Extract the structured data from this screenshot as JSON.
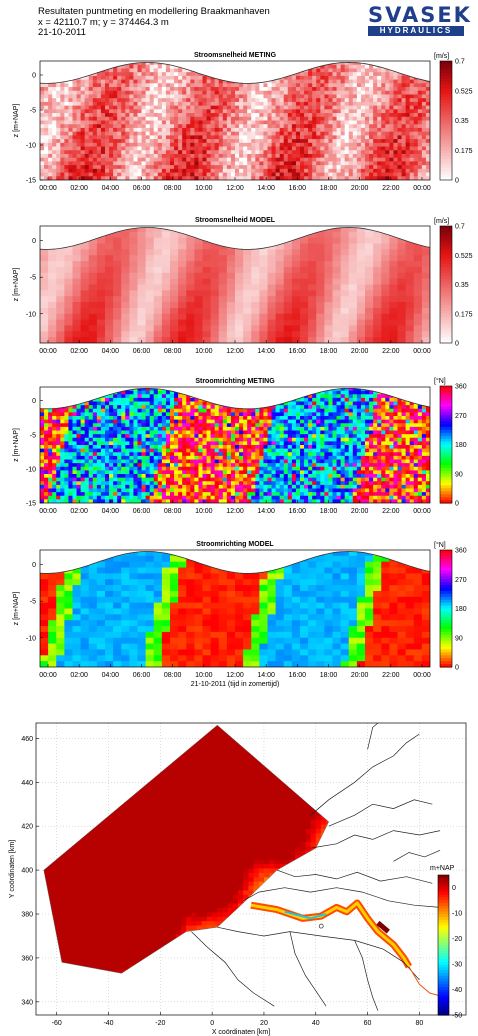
{
  "header": {
    "line1": "Resultaten puntmeting en modellering Braakmanhaven",
    "line2": "x = 42110.7 m;  y = 374464.3 m",
    "line3": "21-10-2011"
  },
  "logo": {
    "top": "SVASEK",
    "bottom": "HYDRAULICS",
    "color": "#1f3f8a"
  },
  "chart_data": [
    {
      "type": "heatmap",
      "title": "Stroomsnelheid METING",
      "ylabel": "z [m+NAP]",
      "xticks": [
        "00:00",
        "02:00",
        "04:00",
        "06:00",
        "08:00",
        "10:00",
        "12:00",
        "14:00",
        "16:00",
        "18:00",
        "20:00",
        "22:00",
        "00:00"
      ],
      "yticks": [
        0,
        -5,
        -10,
        -15
      ],
      "ylim": [
        -15,
        2
      ],
      "colorbar": {
        "unit": "[m/s]",
        "ticks": [
          "0.7",
          "0.525",
          "0.35",
          "0.175",
          "0"
        ],
        "range": [
          0,
          0.7
        ],
        "colormap": "white-red"
      }
    },
    {
      "type": "heatmap",
      "title": "Stroomsnelheid MODEL",
      "ylabel": "z [m+NAP]",
      "xticks": [
        "00:00",
        "02:00",
        "04:00",
        "06:00",
        "08:00",
        "10:00",
        "12:00",
        "14:00",
        "16:00",
        "18:00",
        "20:00",
        "22:00",
        "00:00"
      ],
      "yticks": [
        0,
        -5,
        -10
      ],
      "ylim": [
        -14,
        2
      ],
      "colorbar": {
        "unit": "[m/s]",
        "ticks": [
          "0.7",
          "0.525",
          "0.35",
          "0.175",
          "0"
        ],
        "range": [
          0,
          0.7
        ],
        "colormap": "white-red"
      }
    },
    {
      "type": "heatmap",
      "title": "Stroomrichting METING",
      "ylabel": "z [m+NAP]",
      "xticks": [
        "00:00",
        "02:00",
        "04:00",
        "06:00",
        "08:00",
        "10:00",
        "12:00",
        "14:00",
        "16:00",
        "18:00",
        "20:00",
        "22:00",
        "00:00"
      ],
      "yticks": [
        0,
        -5,
        -10,
        -15
      ],
      "ylim": [
        -15,
        2
      ],
      "colorbar": {
        "unit": "[°N]",
        "ticks": [
          "360",
          "270",
          "180",
          "90",
          "0"
        ],
        "range": [
          0,
          360
        ],
        "colormap": "hsv"
      }
    },
    {
      "type": "heatmap",
      "title": "Stroomrichting MODEL",
      "ylabel": "z [m+NAP]",
      "xlabel": "21-10-2011  (tijd in zomertijd)",
      "xticks": [
        "00:00",
        "02:00",
        "04:00",
        "06:00",
        "08:00",
        "10:00",
        "12:00",
        "14:00",
        "16:00",
        "18:00",
        "20:00",
        "22:00",
        "00:00"
      ],
      "yticks": [
        0,
        -5,
        -10
      ],
      "ylim": [
        -14,
        2
      ],
      "colorbar": {
        "unit": "[°N]",
        "ticks": [
          "360",
          "270",
          "180",
          "90",
          "0"
        ],
        "range": [
          0,
          360
        ],
        "colormap": "hsv"
      }
    },
    {
      "type": "heatmap",
      "title": "",
      "xlabel": "X coördinaten [km]",
      "ylabel": "Y coördinaten [km]",
      "xticks": [
        "-60",
        "-40",
        "-20",
        "0",
        "20",
        "40",
        "60",
        "80"
      ],
      "yticks": [
        "460",
        "440",
        "420",
        "400",
        "380",
        "360",
        "340"
      ],
      "xlim": [
        -68,
        98
      ],
      "ylim": [
        334,
        467
      ],
      "colorbar": {
        "unit": "m+NAP",
        "ticks": [
          "0",
          "-10",
          "-20",
          "-30",
          "-40",
          "-50"
        ],
        "range": [
          -50,
          5
        ],
        "colormap": "jet"
      }
    }
  ]
}
